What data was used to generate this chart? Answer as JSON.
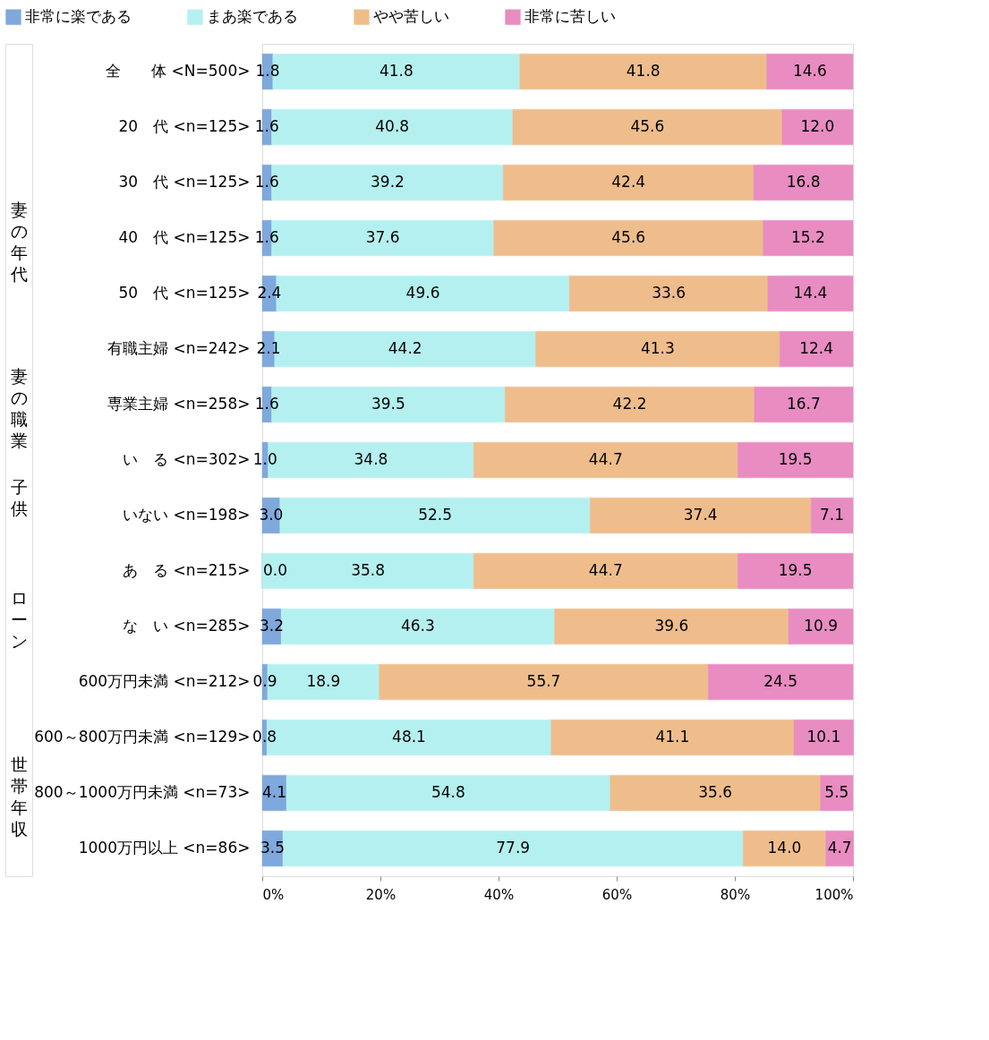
{
  "chart_data": {
    "type": "bar",
    "orientation": "horizontal",
    "stacked": true,
    "categories": [
      "全　　体 <N=500>",
      "20　代 <n=125>",
      "30　代 <n=125>",
      "40　代 <n=125>",
      "50　代 <n=125>",
      "有職主婦 <n=242>",
      "専業主婦 <n=258>",
      "い　る <n=302>",
      "いない <n=198>",
      "あ　る <n=215>",
      "な　い <n=285>",
      "600万円未満 <n=212>",
      "600～800万円未満 <n=129>",
      "800～1000万円未満 <n=73>",
      "1000万円以上 <n=86>"
    ],
    "series": [
      {
        "name": "非常に楽である",
        "color": "#7fa8dc",
        "values": [
          1.8,
          1.6,
          1.6,
          1.6,
          2.4,
          2.1,
          1.6,
          1.0,
          3.0,
          0.0,
          3.2,
          0.9,
          0.8,
          4.1,
          3.5
        ],
        "value_labels": [
          "1.8",
          "1.6",
          "1.6",
          "1.6",
          "2.4",
          "2.1",
          "1.6",
          "1.0",
          "3.0",
          "0.0",
          "3.2",
          "0.9",
          "0.8",
          "4.1",
          "3.5"
        ]
      },
      {
        "name": "まあ楽である",
        "color": "#b5f0f0",
        "values": [
          41.8,
          40.8,
          39.2,
          37.6,
          49.6,
          44.2,
          39.5,
          34.8,
          52.5,
          35.8,
          46.3,
          18.9,
          48.1,
          54.8,
          77.9
        ],
        "value_labels": [
          "41.8",
          "40.8",
          "39.2",
          "37.6",
          "49.6",
          "44.2",
          "39.5",
          "34.8",
          "52.5",
          "35.8",
          "46.3",
          "18.9",
          "48.1",
          "54.8",
          "77.9"
        ]
      },
      {
        "name": "やや苦しい",
        "color": "#efbd8c",
        "values": [
          41.8,
          45.6,
          42.4,
          45.6,
          33.6,
          41.3,
          42.2,
          44.7,
          37.4,
          44.7,
          39.6,
          55.7,
          41.1,
          35.6,
          14.0
        ],
        "value_labels": [
          "41.8",
          "45.6",
          "42.4",
          "45.6",
          "33.6",
          "41.3",
          "42.2",
          "44.7",
          "37.4",
          "44.7",
          "39.6",
          "55.7",
          "41.1",
          "35.6",
          "14.0"
        ]
      },
      {
        "name": "非常に苦しい",
        "color": "#e88cc2",
        "values": [
          14.6,
          12.0,
          16.8,
          15.2,
          14.4,
          12.4,
          16.7,
          19.5,
          7.1,
          19.5,
          10.9,
          24.5,
          10.1,
          5.5,
          4.7
        ],
        "value_labels": [
          "14.6",
          "12.0",
          "16.8",
          "15.2",
          "14.4",
          "12.4",
          "16.7",
          "19.5",
          "7.1",
          "19.5",
          "10.9",
          "24.5",
          "10.1",
          "5.5",
          "4.7"
        ]
      }
    ],
    "annotations": [
      "妻の年代",
      "妻の職業",
      "子供",
      "ローン",
      "世帯年収"
    ],
    "xlim": [
      0,
      100
    ],
    "xticks": [
      {
        "value": 0,
        "label": "0%"
      },
      {
        "value": 20,
        "label": "20%"
      },
      {
        "value": 40,
        "label": "40%"
      },
      {
        "value": 60,
        "label": "60%"
      },
      {
        "value": 80,
        "label": "80%"
      },
      {
        "value": 100,
        "label": "100%"
      }
    ],
    "legend": "top",
    "grid": false
  }
}
